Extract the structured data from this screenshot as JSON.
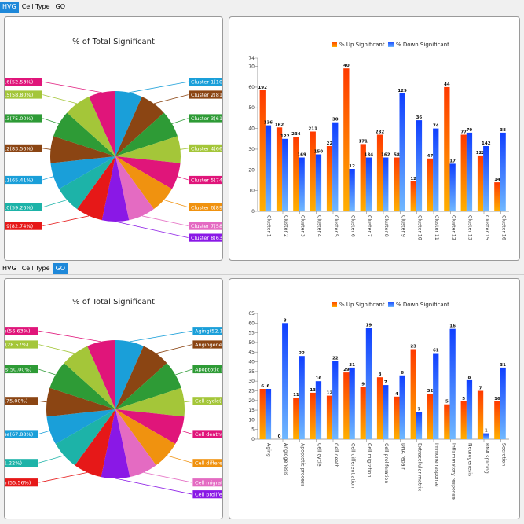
{
  "top_tabs": [
    "HVG",
    "Cell Type",
    "GO"
  ],
  "bottom_tabs": [
    "HVG",
    "Cell Type",
    "GO"
  ],
  "legend": {
    "up": "% Up Significant",
    "down": "% Down Significant"
  },
  "colors": {
    "accent": "#1e88d9",
    "up_start": "#ff3a00",
    "up_end": "#ffb000",
    "down_start": "#1040ff",
    "down_end": "#70b8ff"
  },
  "chart_data": [
    {
      "type": "pie",
      "title": "% of Total Significant",
      "slices": [
        {
          "label": "Cluster 1(100.00%)",
          "value": 1.0,
          "color": "#1a9fd9"
        },
        {
          "label": "Cluster 2(81.61%)",
          "value": 0.8161,
          "color": "#8b4513"
        },
        {
          "label": "Cluster 3(61.81%)",
          "value": 0.6181,
          "color": "#2e9b36"
        },
        {
          "label": "Cluster 4(66.36%)",
          "value": 0.6636,
          "color": "#a4c639"
        },
        {
          "label": "Cluster 5(74.29%)",
          "value": 0.7429,
          "color": "#e0157a"
        },
        {
          "label": "Cluster 6(89.66%)",
          "value": 0.8966,
          "color": "#f0920f"
        },
        {
          "label": "Cluster 7(58.54%)",
          "value": 0.5854,
          "color": "#e46bc2"
        },
        {
          "label": "Cluster 8(63.04%)",
          "value": 0.6304,
          "color": "#8a18e6"
        },
        {
          "label": "Cluster 9(82.74%)",
          "value": 0.8274,
          "color": "#e61818"
        },
        {
          "label": "Cluster 10(59.26%)",
          "value": 0.5926,
          "color": "#1db3a8"
        },
        {
          "label": "Cluster 11(65.41%)",
          "value": 0.6541,
          "color": "#1a9fd9"
        },
        {
          "label": "Cluster 12(83.56%)",
          "value": 0.8356,
          "color": "#8b4513"
        },
        {
          "label": "Cluster 13(75.00%)",
          "value": 0.75,
          "color": "#2e9b36"
        },
        {
          "label": "Cluster 15(58.80%)",
          "value": 0.588,
          "color": "#a4c639"
        },
        {
          "label": "Cluster 16(52.53%)",
          "value": 0.5253,
          "color": "#e0157a"
        }
      ]
    },
    {
      "type": "bar",
      "categories": [
        "Cluster 1",
        "Cluster 2",
        "Cluster 3",
        "Cluster 4",
        "Cluster 5",
        "Cluster 6",
        "Cluster 7",
        "Cluster 8",
        "Cluster 9",
        "Cluster 10",
        "Cluster 11",
        "Cluster 12",
        "Cluster 13",
        "Cluster 15",
        "Cluster 16"
      ],
      "ylim": [
        0,
        74
      ],
      "yticks": [
        0,
        10,
        20,
        30,
        40,
        50,
        60,
        70,
        74
      ],
      "series": [
        {
          "name": "% Up Significant",
          "values": [
            58.5,
            40.5,
            36,
            38.5,
            31.5,
            69,
            32.5,
            37,
            26,
            14.5,
            25.5,
            60,
            37,
            27,
            14
          ],
          "labels": [
            "192",
            "162",
            "234",
            "211",
            "22",
            "40",
            "171",
            "232",
            "58",
            "12",
            "47",
            "44",
            "77",
            "122",
            "14"
          ]
        },
        {
          "name": "% Down Significant",
          "values": [
            41.5,
            35,
            26,
            27.5,
            43,
            20.5,
            26,
            26,
            57,
            44,
            40,
            23,
            38,
            31.5,
            38
          ],
          "labels": [
            "136",
            "122",
            "169",
            "150",
            "30",
            "12",
            "134",
            "162",
            "129",
            "36",
            "74",
            "17",
            "79",
            "142",
            "38"
          ]
        }
      ]
    },
    {
      "type": "pie",
      "title": "% of Total Significant",
      "slices": [
        {
          "label": "Aging(52.17%)",
          "value": 0.5217,
          "color": "#1a9fd9"
        },
        {
          "label": "Angiogenesis(60.00%)",
          "value": 0.6,
          "color": "#8b4513"
        },
        {
          "label": "Apoptotic process(64.71%)",
          "value": 0.6471,
          "color": "#2e9b36"
        },
        {
          "label": "Cell cycle(53.70%)",
          "value": 0.537,
          "color": "#a4c639"
        },
        {
          "label": "Cell death(62.96%)",
          "value": 0.6296,
          "color": "#e0157a"
        },
        {
          "label": "Cell differentiation(71.43%)",
          "value": 0.7143,
          "color": "#f0920f"
        },
        {
          "label": "Cell migration(84.85%)",
          "value": 0.8485,
          "color": "#e46bc2"
        },
        {
          "label": "Cell proliferation(60.00%)",
          "value": 0.6,
          "color": "#8a18e6"
        },
        {
          "label": "DNA repair(55.56%)",
          "value": 0.5556,
          "color": "#e61818"
        },
        {
          "label": "Extracellular matrix(61.22%)",
          "value": 0.6122,
          "color": "#1db3a8"
        },
        {
          "label": "Immune response(67.88%)",
          "value": 0.6788,
          "color": "#1a9fd9"
        },
        {
          "label": "Inflammatory response(75.00%)",
          "value": 0.75,
          "color": "#8b4513"
        },
        {
          "label": "Neurogenesis(50.00%)",
          "value": 0.5,
          "color": "#2e9b36"
        },
        {
          "label": "RNA splicing(28.57%)",
          "value": 0.2857,
          "color": "#a4c639"
        },
        {
          "label": "Secretion(56.63%)",
          "value": 0.5663,
          "color": "#e0157a"
        }
      ]
    },
    {
      "type": "bar",
      "categories": [
        "Aging",
        "Angiogenesis",
        "Apoptotic process",
        "Cell cycle",
        "Cell death",
        "Cell differentiation",
        "Cell migration",
        "Cell proliferation",
        "DNA repair",
        "Extracellular matrix",
        "Immune response",
        "Inflammatory response",
        "Neurogenesis",
        "RNA splicing",
        "Secretion"
      ],
      "ylim": [
        0,
        65
      ],
      "yticks": [
        0,
        5,
        10,
        15,
        20,
        25,
        30,
        35,
        40,
        45,
        50,
        55,
        60,
        65
      ],
      "series": [
        {
          "name": "% Up Significant",
          "values": [
            26,
            0,
            21.5,
            24,
            22.5,
            34.5,
            27,
            32,
            22,
            46.5,
            23.5,
            18,
            19.5,
            25,
            19.5
          ],
          "labels": [
            "6",
            "0",
            "11",
            "13",
            "12",
            "29",
            "9",
            "8",
            "4",
            "23",
            "32",
            "5",
            "5",
            "7",
            "16"
          ]
        },
        {
          "name": "% Down Significant",
          "values": [
            26,
            60,
            43,
            30,
            40.5,
            37,
            57.5,
            28,
            33,
            14,
            44.5,
            57,
            30.5,
            3,
            37
          ],
          "labels": [
            "6",
            "3",
            "22",
            "16",
            "22",
            "31",
            "19",
            "7",
            "6",
            "7",
            "61",
            "16",
            "8",
            "1",
            "31"
          ]
        }
      ]
    }
  ]
}
